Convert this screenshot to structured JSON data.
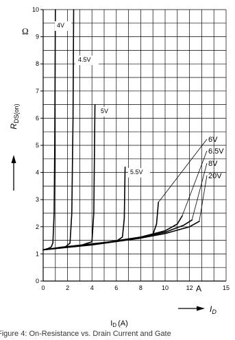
{
  "chart_data": {
    "type": "line",
    "xlim": [
      0,
      15
    ],
    "ylim": [
      0,
      10
    ],
    "x_ticks": [
      "0",
      "2",
      "4",
      "6",
      "8",
      "10",
      "12",
      "15"
    ],
    "y_ticks": [
      "0",
      "1",
      "2",
      "3",
      "4",
      "5",
      "6",
      "7",
      "8",
      "9",
      "10"
    ],
    "y_unit": "Ω",
    "x_unit": "A",
    "ylabel": "R",
    "ylabel_sub": "DS(on)",
    "x_arrow_label": "I",
    "x_arrow_sub": "D",
    "xlabel_bottom": "I",
    "xlabel_bottom_sub": "D",
    "xlabel_bottom_unit": "(A)",
    "caption": "Figure 4: On-Resistance vs. Drain Current and Gate",
    "grid": true,
    "series": [
      {
        "name": "4V",
        "points": [
          [
            0,
            1.15
          ],
          [
            0.4,
            1.2
          ],
          [
            0.65,
            1.25
          ],
          [
            0.8,
            1.4
          ],
          [
            0.9,
            2.5
          ],
          [
            0.95,
            5
          ],
          [
            1.0,
            10
          ]
        ]
      },
      {
        "name": "4.5V",
        "points": [
          [
            0,
            1.15
          ],
          [
            1,
            1.2
          ],
          [
            1.8,
            1.25
          ],
          [
            2.2,
            1.4
          ],
          [
            2.35,
            2.5
          ],
          [
            2.45,
            6
          ],
          [
            2.5,
            10
          ]
        ]
      },
      {
        "name": "5V",
        "points": [
          [
            0,
            1.15
          ],
          [
            1.5,
            1.25
          ],
          [
            3.2,
            1.33
          ],
          [
            4,
            1.45
          ],
          [
            4.15,
            2.5
          ],
          [
            4.25,
            6.5
          ]
        ]
      },
      {
        "name": "5.5V",
        "points": [
          [
            0,
            1.15
          ],
          [
            2,
            1.26
          ],
          [
            4,
            1.37
          ],
          [
            6,
            1.47
          ],
          [
            6.5,
            1.62
          ],
          [
            6.65,
            2.3
          ],
          [
            6.72,
            4.2
          ]
        ]
      },
      {
        "name": "6V",
        "points": [
          [
            0,
            1.15
          ],
          [
            3,
            1.3
          ],
          [
            6,
            1.47
          ],
          [
            8,
            1.6
          ],
          [
            9,
            1.72
          ],
          [
            9.3,
            2.1
          ],
          [
            9.45,
            2.9
          ]
        ]
      },
      {
        "name": "6.5V",
        "points": [
          [
            0,
            1.15
          ],
          [
            4,
            1.35
          ],
          [
            8,
            1.62
          ],
          [
            10,
            1.85
          ],
          [
            11,
            2.1
          ],
          [
            11.4,
            2.4
          ]
        ]
      },
      {
        "name": "8V",
        "points": [
          [
            0,
            1.15
          ],
          [
            4,
            1.34
          ],
          [
            8,
            1.6
          ],
          [
            10,
            1.8
          ],
          [
            11.5,
            2.05
          ],
          [
            12.2,
            2.25
          ]
        ]
      },
      {
        "name": "20V",
        "points": [
          [
            0,
            1.15
          ],
          [
            4,
            1.33
          ],
          [
            8,
            1.58
          ],
          [
            10,
            1.75
          ],
          [
            12,
            2.0
          ],
          [
            12.8,
            2.2
          ]
        ]
      }
    ]
  }
}
